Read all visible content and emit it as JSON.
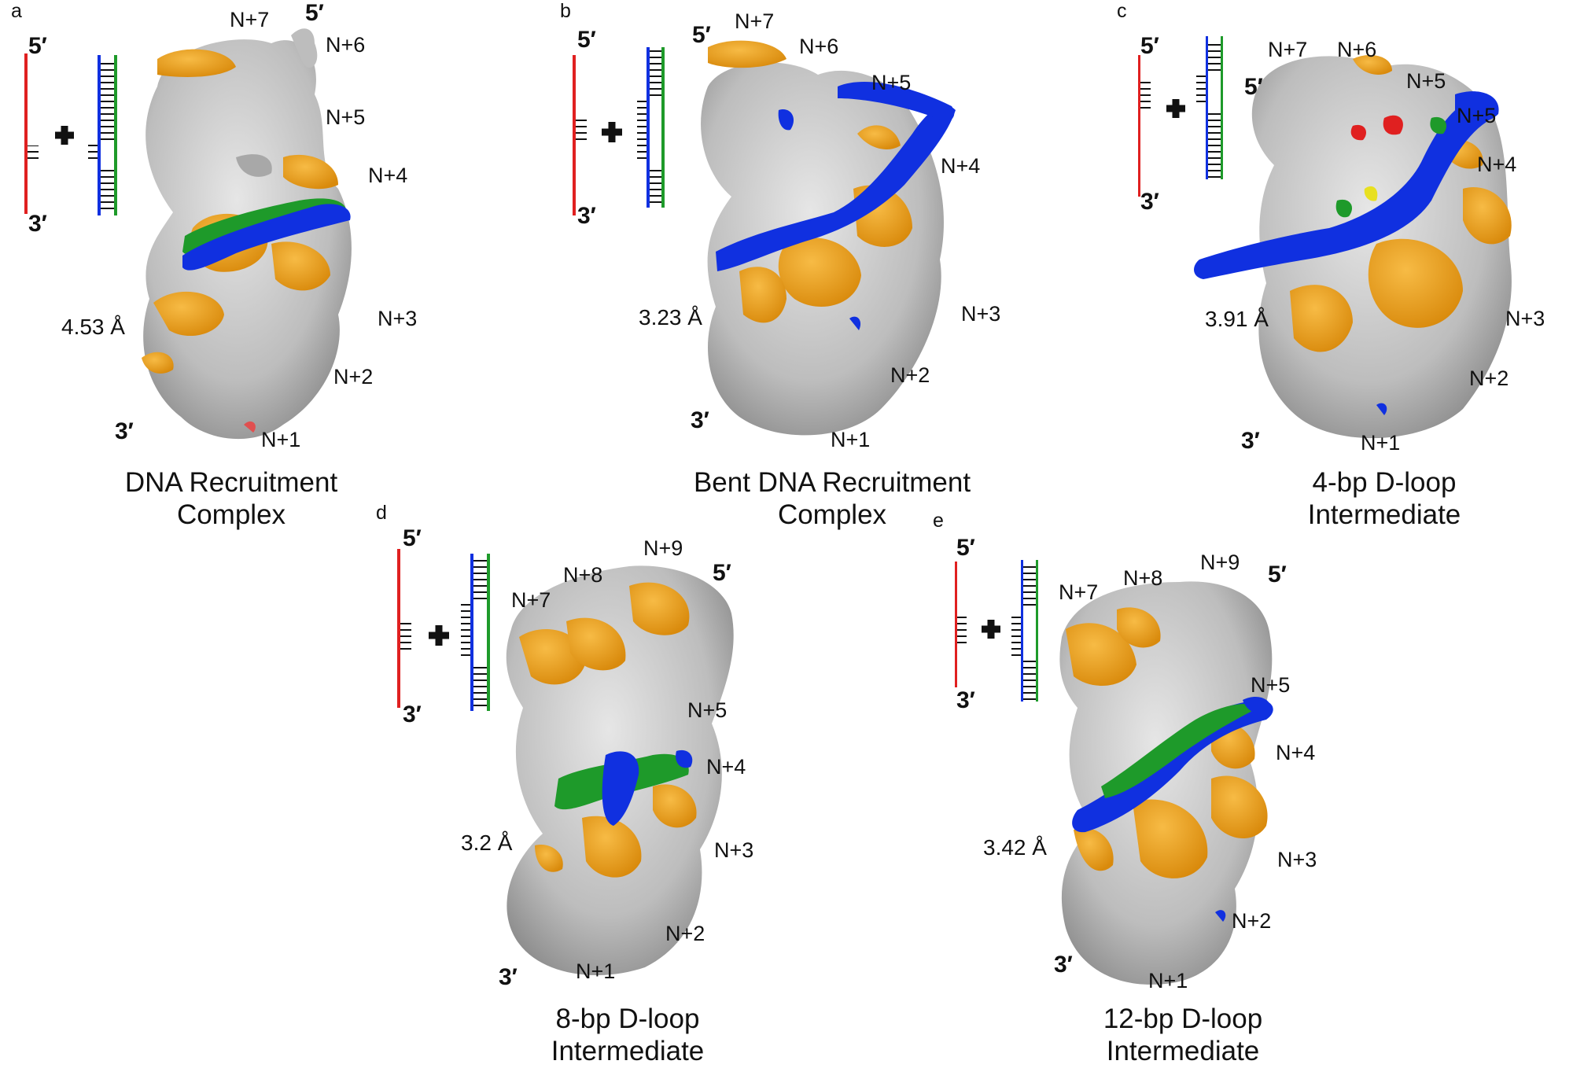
{
  "colors": {
    "protein": "#c9c9c9",
    "protein_shade": "#8d8d8d",
    "subunit_accent": "#f0a21a",
    "dna_ssdna": "#e02020",
    "dna_target": "#1030e0",
    "dna_complement": "#1e9a2a",
    "ligand": "#e8e020"
  },
  "panels": [
    {
      "id": "a",
      "label": "a",
      "title_lines": [
        "DNA Recruitment",
        "Complex"
      ],
      "resolution": "4.53 Å",
      "end_5": "5′",
      "end_3": "3′",
      "map_5": "5′",
      "map_3": "3′",
      "subunits": [
        "N+7",
        "N+6",
        "N+5",
        "N+4",
        "N+3",
        "N+2",
        "N+1"
      ]
    },
    {
      "id": "b",
      "label": "b",
      "title_lines": [
        "Bent DNA Recruitment",
        "Complex"
      ],
      "resolution": "3.23 Å",
      "end_5": "5′",
      "end_3": "3′",
      "map_5": "5′",
      "map_3": "3′",
      "subunits": [
        "N+7",
        "N+6",
        "N+5",
        "N+4",
        "N+3",
        "N+2",
        "N+1"
      ]
    },
    {
      "id": "c",
      "label": "c",
      "title_lines": [
        "4-bp D-loop",
        "Intermediate"
      ],
      "resolution": "3.91 Å",
      "end_5": "5′",
      "end_3": "3′",
      "map_5": "5′",
      "map_3": "3′",
      "subunits": [
        "N+7",
        "N+6",
        "N+5",
        "N+5",
        "N+4",
        "N+3",
        "N+2",
        "N+1"
      ]
    },
    {
      "id": "d",
      "label": "d",
      "title_lines": [
        "8-bp D-loop",
        "Intermediate"
      ],
      "resolution": "3.2 Å",
      "end_5": "5′",
      "end_3": "3′",
      "map_5": "5′",
      "map_3": "3′",
      "subunits": [
        "N+9",
        "N+8",
        "N+7",
        "N+5",
        "N+4",
        "N+3",
        "N+2",
        "N+1"
      ]
    },
    {
      "id": "e",
      "label": "e",
      "title_lines": [
        "12-bp D-loop",
        "Intermediate"
      ],
      "resolution": "3.42 Å",
      "end_5": "5′",
      "end_3": "3′",
      "map_5": "5′",
      "map_3": "3′",
      "subunits": [
        "N+7",
        "N+8",
        "N+9",
        "N+5",
        "N+4",
        "N+3",
        "N+2",
        "N+1"
      ]
    }
  ]
}
